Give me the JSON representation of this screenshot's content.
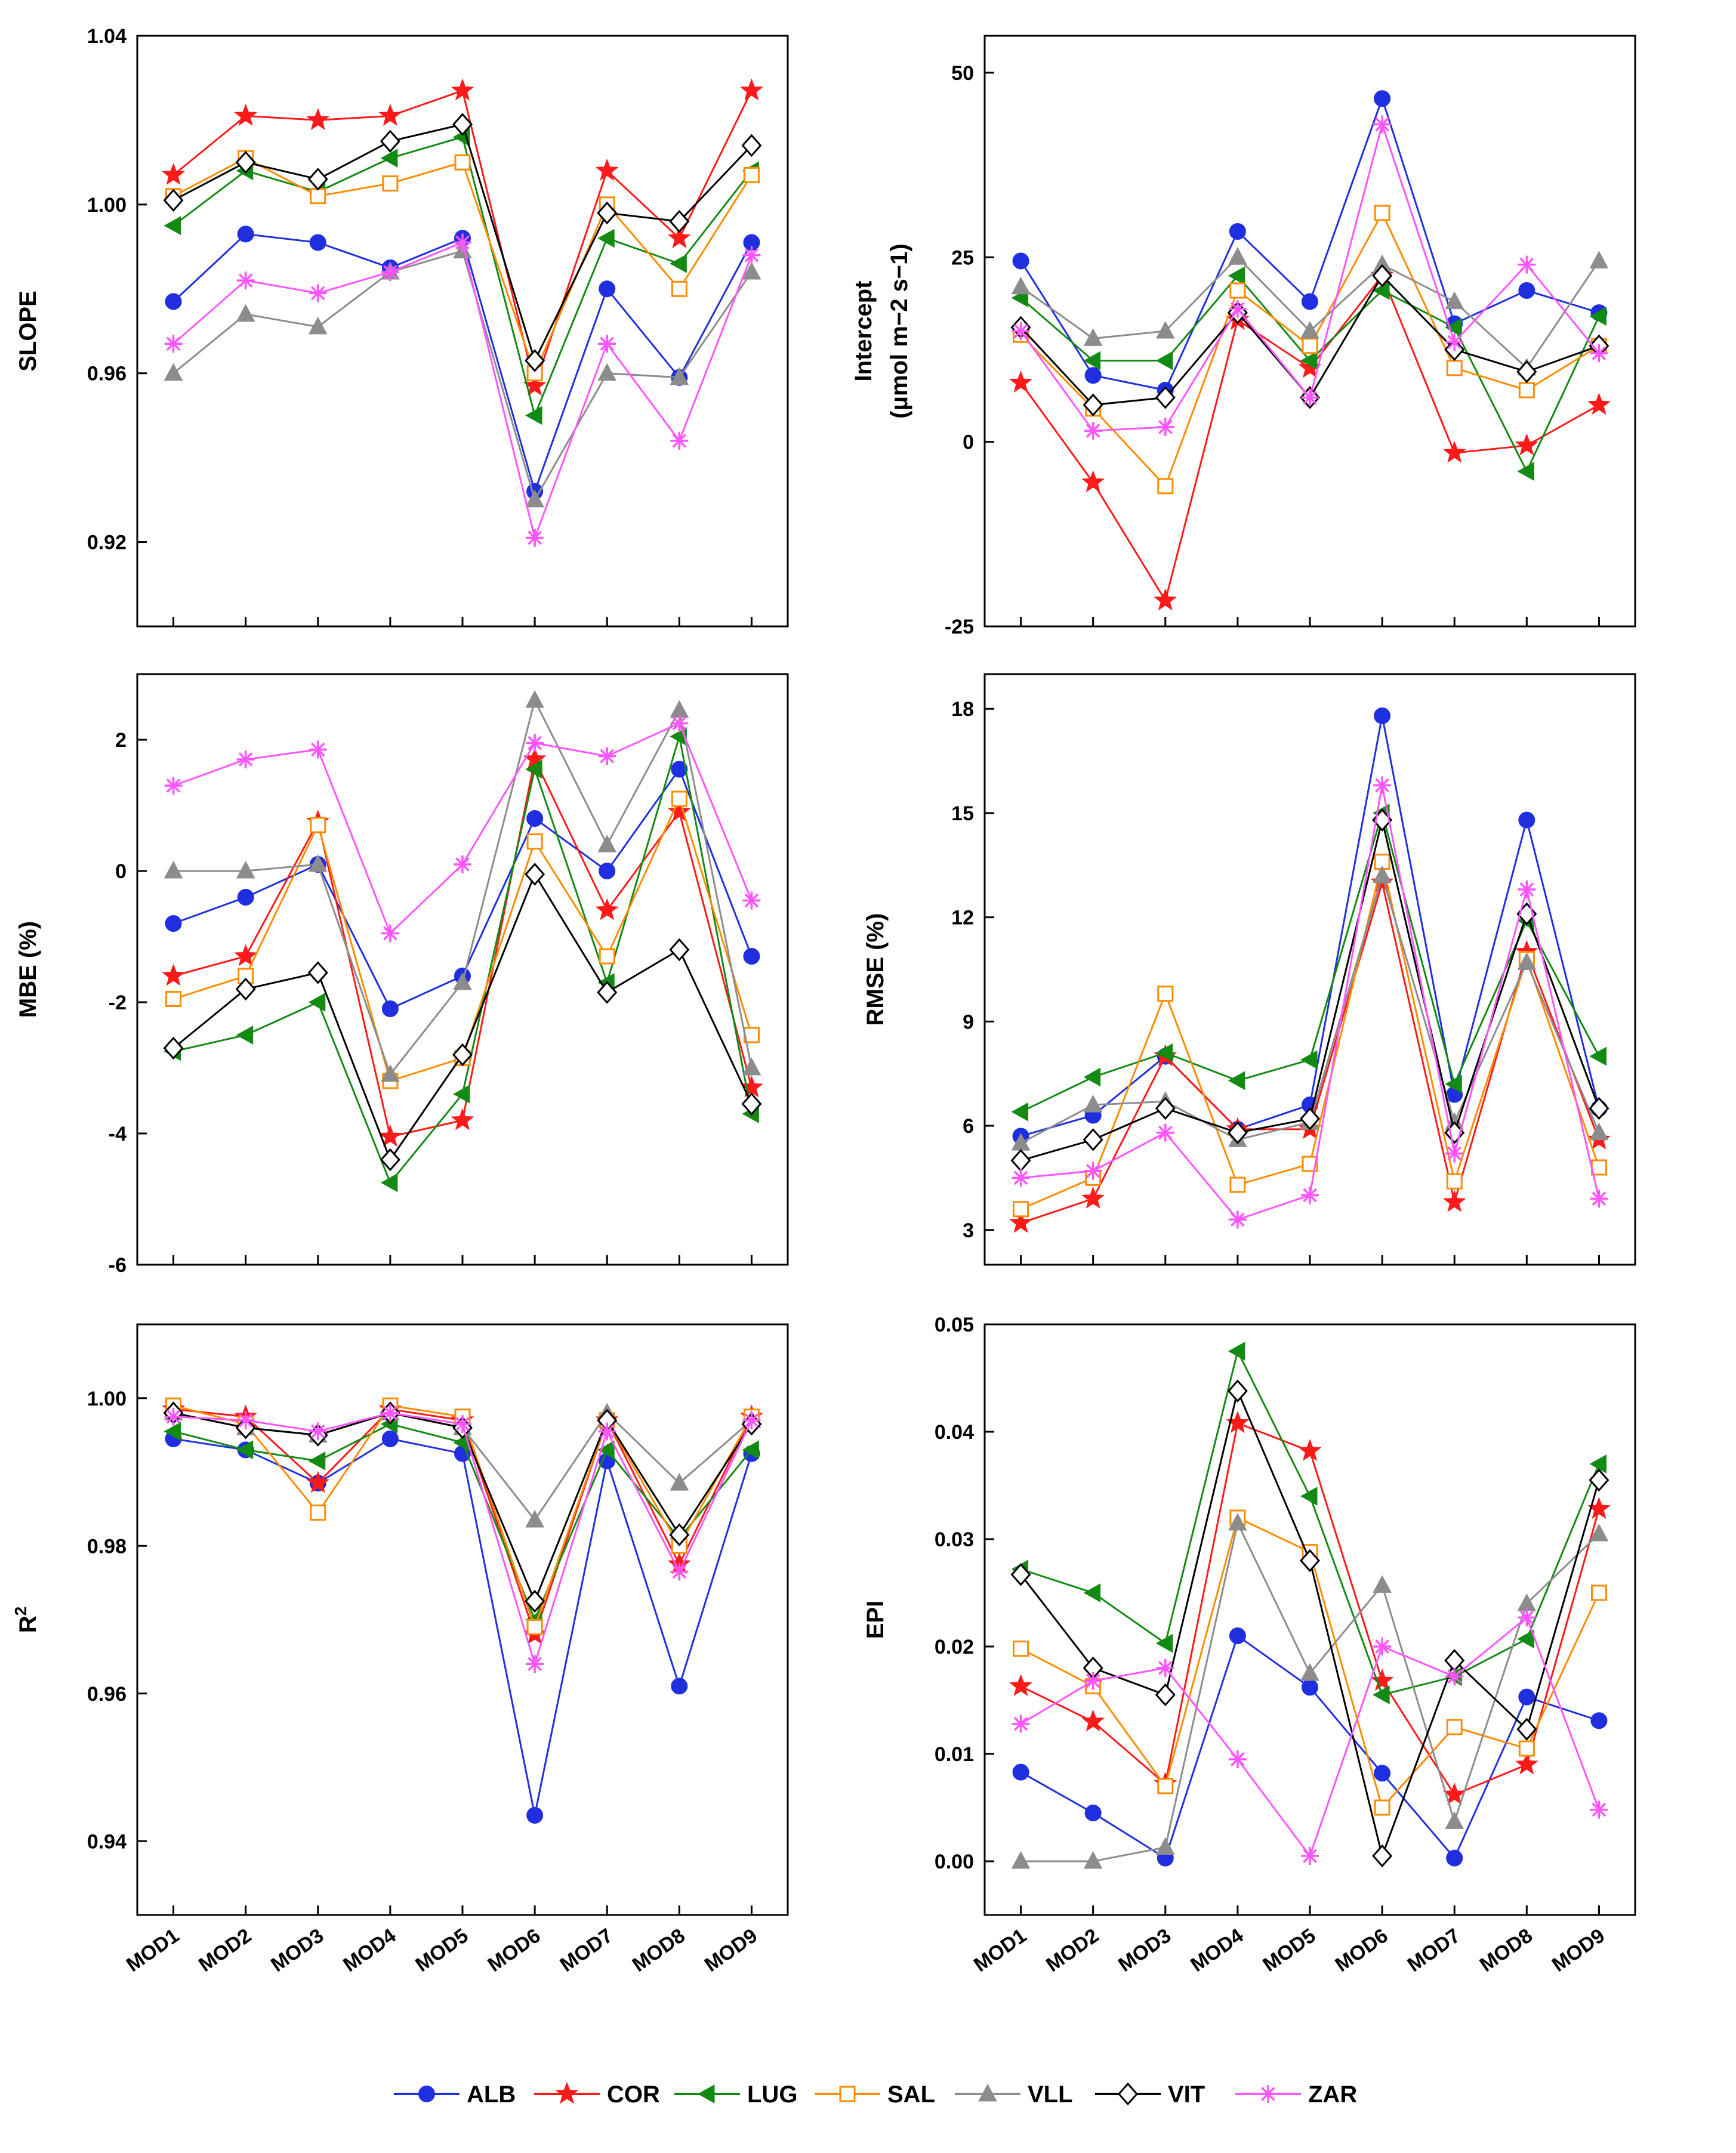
{
  "figure": {
    "series_names": [
      "ALB",
      "COR",
      "LUG",
      "SAL",
      "VLL",
      "VIT",
      "ZAR"
    ],
    "series_colors": {
      "ALB": "#1f2fe0",
      "COR": "#ff1a1a",
      "LUG": "#138a13",
      "SAL": "#ff8c00",
      "VLL": "#8c8c8c",
      "VIT": "#000000",
      "ZAR": "#ff55ff"
    },
    "series_markers": {
      "ALB": "circle",
      "COR": "star",
      "LUG": "triangle-left",
      "SAL": "square-open",
      "VLL": "triangle-up",
      "VIT": "diamond-open",
      "ZAR": "asterisk"
    }
  },
  "chart_data": [
    {
      "type": "line",
      "ylabel": "SLOPE",
      "categories": [
        "MOD1",
        "MOD2",
        "MOD3",
        "MOD4",
        "MOD5",
        "MOD6",
        "MOD7",
        "MOD8",
        "MOD9"
      ],
      "ylim": [
        0.9,
        1.04
      ],
      "yticks": [
        0.92,
        0.96,
        1.0,
        1.04
      ],
      "ytick_labels": [
        "0.92",
        "0.96",
        "1.00",
        "1.04"
      ],
      "show_xtick_labels": false,
      "series": [
        {
          "name": "ALB",
          "values": [
            0.977,
            0.993,
            0.991,
            0.985,
            0.992,
            0.932,
            0.98,
            0.959,
            0.991
          ]
        },
        {
          "name": "COR",
          "values": [
            1.007,
            1.021,
            1.02,
            1.021,
            1.027,
            0.957,
            1.008,
            0.992,
            1.027
          ]
        },
        {
          "name": "LUG",
          "values": [
            0.995,
            1.008,
            1.003,
            1.011,
            1.016,
            0.95,
            0.992,
            0.986,
            1.008
          ]
        },
        {
          "name": "SAL",
          "values": [
            1.002,
            1.011,
            1.002,
            1.005,
            1.01,
            0.96,
            1.0,
            0.98,
            1.007
          ]
        },
        {
          "name": "VLL",
          "values": [
            0.96,
            0.974,
            0.971,
            0.984,
            0.989,
            0.93,
            0.96,
            0.959,
            0.984
          ]
        },
        {
          "name": "VIT",
          "values": [
            1.001,
            1.01,
            1.006,
            1.015,
            1.019,
            0.963,
            0.998,
            0.996,
            1.014
          ]
        },
        {
          "name": "ZAR",
          "values": [
            0.967,
            0.982,
            0.979,
            0.984,
            0.991,
            0.921,
            0.967,
            0.944,
            0.988
          ]
        }
      ]
    },
    {
      "type": "line",
      "ylabel": "Intercept",
      "ylabel_units": "(μmol m−2 s−1)",
      "categories": [
        "MOD1",
        "MOD2",
        "MOD3",
        "MOD4",
        "MOD5",
        "MOD6",
        "MOD7",
        "MOD8",
        "MOD9"
      ],
      "ylim": [
        -25,
        55
      ],
      "yticks": [
        -25,
        0,
        25,
        50
      ],
      "ytick_labels": [
        "-25",
        "0",
        "25",
        "50"
      ],
      "show_xtick_labels": false,
      "series": [
        {
          "name": "ALB",
          "values": [
            24.5,
            9.0,
            7.0,
            28.5,
            19.0,
            46.5,
            16.0,
            20.5,
            17.5
          ]
        },
        {
          "name": "COR",
          "values": [
            8.0,
            -5.5,
            -21.5,
            16.5,
            10.0,
            22.5,
            -1.5,
            -0.5,
            5.0
          ]
        },
        {
          "name": "LUG",
          "values": [
            19.5,
            11.0,
            11.0,
            22.5,
            11.0,
            20.5,
            15.5,
            -4.0,
            17.0
          ]
        },
        {
          "name": "SAL",
          "values": [
            14.5,
            4.5,
            -6.0,
            20.5,
            13.0,
            31.0,
            10.0,
            7.0,
            13.0
          ]
        },
        {
          "name": "VLL",
          "values": [
            21.0,
            14.0,
            15.0,
            25.0,
            15.0,
            24.0,
            19.0,
            10.0,
            24.5
          ]
        },
        {
          "name": "VIT",
          "values": [
            15.5,
            5.0,
            6.0,
            17.5,
            6.0,
            22.5,
            12.5,
            9.5,
            13.0
          ]
        },
        {
          "name": "ZAR",
          "values": [
            15.0,
            1.5,
            2.0,
            18.0,
            6.0,
            43.0,
            13.5,
            24.0,
            12.0
          ]
        }
      ]
    },
    {
      "type": "line",
      "ylabel": "MBE (%)",
      "categories": [
        "MOD1",
        "MOD2",
        "MOD3",
        "MOD4",
        "MOD5",
        "MOD6",
        "MOD7",
        "MOD8",
        "MOD9"
      ],
      "ylim": [
        -6,
        3
      ],
      "yticks": [
        -6,
        -4,
        -2,
        0,
        2
      ],
      "ytick_labels": [
        "-6",
        "-4",
        "-2",
        "0",
        "2"
      ],
      "show_xtick_labels": false,
      "series": [
        {
          "name": "ALB",
          "values": [
            -0.8,
            -0.4,
            0.1,
            -2.1,
            -1.6,
            0.8,
            0.0,
            1.55,
            -1.3
          ]
        },
        {
          "name": "COR",
          "values": [
            -1.6,
            -1.3,
            0.75,
            -4.05,
            -3.8,
            1.7,
            -0.6,
            0.9,
            -3.3
          ]
        },
        {
          "name": "LUG",
          "values": [
            -2.75,
            -2.5,
            -2.0,
            -4.75,
            -3.4,
            1.55,
            -1.7,
            2.05,
            -3.7
          ]
        },
        {
          "name": "SAL",
          "values": [
            -1.95,
            -1.6,
            0.7,
            -3.2,
            -2.85,
            0.45,
            -1.3,
            1.1,
            -2.5
          ]
        },
        {
          "name": "VLL",
          "values": [
            0.0,
            0.0,
            0.1,
            -3.1,
            -1.7,
            2.6,
            0.4,
            2.45,
            -3.0
          ]
        },
        {
          "name": "VIT",
          "values": [
            -2.7,
            -1.8,
            -1.55,
            -4.4,
            -2.8,
            -0.05,
            -1.85,
            -1.2,
            -3.55
          ]
        },
        {
          "name": "ZAR",
          "values": [
            1.3,
            1.7,
            1.85,
            -0.95,
            0.1,
            1.95,
            1.75,
            2.25,
            -0.45
          ]
        }
      ]
    },
    {
      "type": "line",
      "ylabel": "RMSE (%)",
      "categories": [
        "MOD1",
        "MOD2",
        "MOD3",
        "MOD4",
        "MOD5",
        "MOD6",
        "MOD7",
        "MOD8",
        "MOD9"
      ],
      "ylim": [
        2,
        19
      ],
      "yticks": [
        3,
        6,
        9,
        12,
        15,
        18
      ],
      "ytick_labels": [
        "3",
        "6",
        "9",
        "12",
        "15",
        "18"
      ],
      "show_xtick_labels": false,
      "series": [
        {
          "name": "ALB",
          "values": [
            5.7,
            6.3,
            8.0,
            5.9,
            6.6,
            17.8,
            6.9,
            14.8,
            6.5
          ]
        },
        {
          "name": "COR",
          "values": [
            3.2,
            3.9,
            8.0,
            5.9,
            5.9,
            13.0,
            3.8,
            11.0,
            5.6
          ]
        },
        {
          "name": "LUG",
          "values": [
            6.4,
            7.4,
            8.1,
            7.3,
            7.9,
            15.0,
            7.2,
            11.9,
            8.0
          ]
        },
        {
          "name": "SAL",
          "values": [
            3.6,
            4.5,
            9.8,
            4.3,
            4.9,
            13.6,
            4.4,
            10.8,
            4.8
          ]
        },
        {
          "name": "VLL",
          "values": [
            5.5,
            6.6,
            6.7,
            5.6,
            6.1,
            13.2,
            6.1,
            10.7,
            5.8
          ]
        },
        {
          "name": "VIT",
          "values": [
            5.0,
            5.6,
            6.5,
            5.8,
            6.2,
            14.8,
            5.8,
            12.1,
            6.5
          ]
        },
        {
          "name": "ZAR",
          "values": [
            4.5,
            4.7,
            5.8,
            3.3,
            4.0,
            15.8,
            5.2,
            12.8,
            3.9
          ]
        }
      ]
    },
    {
      "type": "line",
      "ylabel": "R2",
      "categories": [
        "MOD1",
        "MOD2",
        "MOD3",
        "MOD4",
        "MOD5",
        "MOD6",
        "MOD7",
        "MOD8",
        "MOD9"
      ],
      "ylim": [
        0.93,
        1.01
      ],
      "yticks": [
        0.94,
        0.96,
        0.98,
        1.0
      ],
      "ytick_labels": [
        "0.94",
        "0.96",
        "0.98",
        "1.00"
      ],
      "show_xtick_labels": true,
      "series": [
        {
          "name": "ALB",
          "values": [
            0.9945,
            0.993,
            0.9885,
            0.9945,
            0.9925,
            0.9435,
            0.9915,
            0.961,
            0.9925
          ]
        },
        {
          "name": "COR",
          "values": [
            0.9985,
            0.9975,
            0.9885,
            0.9985,
            0.997,
            0.968,
            0.997,
            0.9775,
            0.9975
          ]
        },
        {
          "name": "LUG",
          "values": [
            0.9955,
            0.993,
            0.9915,
            0.9965,
            0.994,
            0.97,
            0.993,
            0.981,
            0.993
          ]
        },
        {
          "name": "SAL",
          "values": [
            0.999,
            0.9965,
            0.9845,
            0.999,
            0.9975,
            0.969,
            0.997,
            0.98,
            0.9975
          ]
        },
        {
          "name": "VLL",
          "values": [
            0.998,
            0.996,
            0.995,
            0.998,
            0.996,
            0.9835,
            0.998,
            0.9885,
            0.997
          ]
        },
        {
          "name": "VIT",
          "values": [
            0.998,
            0.996,
            0.995,
            0.998,
            0.996,
            0.9725,
            0.997,
            0.9815,
            0.9965
          ]
        },
        {
          "name": "ZAR",
          "values": [
            0.9975,
            0.997,
            0.9955,
            0.998,
            0.9965,
            0.964,
            0.9955,
            0.9765,
            0.997
          ]
        }
      ]
    },
    {
      "type": "line",
      "ylabel": "EPI",
      "categories": [
        "MOD1",
        "MOD2",
        "MOD3",
        "MOD4",
        "MOD5",
        "MOD6",
        "MOD7",
        "MOD8",
        "MOD9"
      ],
      "ylim": [
        -0.005,
        0.05
      ],
      "yticks": [
        0.0,
        0.01,
        0.02,
        0.03,
        0.04,
        0.05
      ],
      "ytick_labels": [
        "0.00",
        "0.01",
        "0.02",
        "0.03",
        "0.04",
        "0.05"
      ],
      "show_xtick_labels": true,
      "series": [
        {
          "name": "ALB",
          "values": [
            0.0083,
            0.0045,
            0.0003,
            0.021,
            0.0162,
            0.0082,
            0.0003,
            0.0153,
            0.0131
          ]
        },
        {
          "name": "COR",
          "values": [
            0.0163,
            0.013,
            0.0072,
            0.0408,
            0.0382,
            0.0168,
            0.0062,
            0.009,
            0.0328
          ]
        },
        {
          "name": "LUG",
          "values": [
            0.0272,
            0.025,
            0.0203,
            0.0475,
            0.034,
            0.0155,
            0.0172,
            0.0207,
            0.037
          ]
        },
        {
          "name": "SAL",
          "values": [
            0.0198,
            0.0163,
            0.007,
            0.032,
            0.0288,
            0.005,
            0.0125,
            0.0105,
            0.025
          ]
        },
        {
          "name": "VLL",
          "values": [
            0.0,
            0.0,
            0.0013,
            0.0315,
            0.0175,
            0.0257,
            0.0037,
            0.024,
            0.0305
          ]
        },
        {
          "name": "VIT",
          "values": [
            0.0267,
            0.018,
            0.0155,
            0.0438,
            0.028,
            0.0005,
            0.0187,
            0.0123,
            0.0355
          ]
        },
        {
          "name": "ZAR",
          "values": [
            0.0128,
            0.0168,
            0.018,
            0.0095,
            0.0005,
            0.02,
            0.0172,
            0.0227,
            0.0048
          ]
        }
      ]
    }
  ]
}
